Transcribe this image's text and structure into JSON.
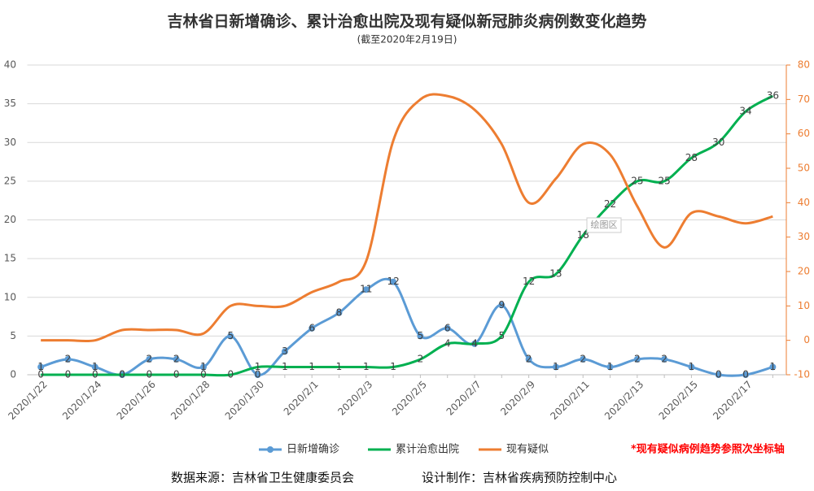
{
  "chart_data": {
    "type": "line",
    "title": "吉林省日新增确诊、累计治愈出院及现有疑似新冠肺炎病例数变化趋势",
    "subtitle": "(截至2020年2月19日)",
    "categories": [
      "2020/1/22",
      null,
      "2020/1/24",
      null,
      "2020/1/26",
      null,
      "2020/1/28",
      null,
      "2020/1/30",
      null,
      "2020/2/1",
      null,
      "2020/2/3",
      null,
      "2020/2/5",
      null,
      "2020/2/7",
      null,
      "2020/2/9",
      null,
      "2020/2/11",
      null,
      "2020/2/13",
      null,
      "2020/2/15",
      null,
      "2020/2/17",
      null
    ],
    "series": [
      {
        "name": "日新增确诊",
        "color": "#5b9bd5",
        "markers": true,
        "data_labels": true,
        "values": [
          1,
          2,
          1,
          0,
          2,
          2,
          1,
          5,
          0,
          3,
          6,
          8,
          11,
          12,
          5,
          6,
          4,
          9,
          2,
          1,
          2,
          1,
          2,
          2,
          1,
          0,
          0,
          1
        ]
      },
      {
        "name": "累计治愈出院",
        "color": "#00b050",
        "markers": false,
        "data_labels": true,
        "values": [
          0,
          0,
          0,
          0,
          0,
          0,
          0,
          0,
          1,
          1,
          1,
          1,
          1,
          1,
          2,
          4,
          4,
          5,
          12,
          13,
          18,
          22,
          25,
          25,
          28,
          30,
          34,
          36
        ]
      },
      {
        "name": "现有疑似",
        "color": "#ed7d31",
        "markers": false,
        "data_labels": false,
        "axis": "y2",
        "values": [
          0,
          0,
          0,
          3,
          3,
          3,
          2,
          10,
          10,
          10,
          14,
          17,
          23,
          58,
          70,
          71,
          67,
          57,
          40,
          47,
          57,
          54,
          39,
          27,
          37,
          36,
          34,
          36
        ]
      }
    ],
    "ylim": [
      0,
      40
    ],
    "yticks": [
      0,
      5,
      10,
      15,
      20,
      25,
      30,
      35,
      40
    ],
    "y2lim": [
      -10,
      80
    ],
    "y2ticks": [
      -10,
      0,
      10,
      20,
      30,
      40,
      50,
      60,
      70,
      80
    ],
    "y2_color": "#ed7d31",
    "grid": true,
    "smooth": true,
    "legend": "bottom",
    "note": "*现有疑似病例趋势参照次坐标轴",
    "tooltip": "绘图区",
    "source": "数据来源：吉林省卫生健康委员会",
    "credit": "设计制作：吉林省疾病预防控制中心"
  }
}
